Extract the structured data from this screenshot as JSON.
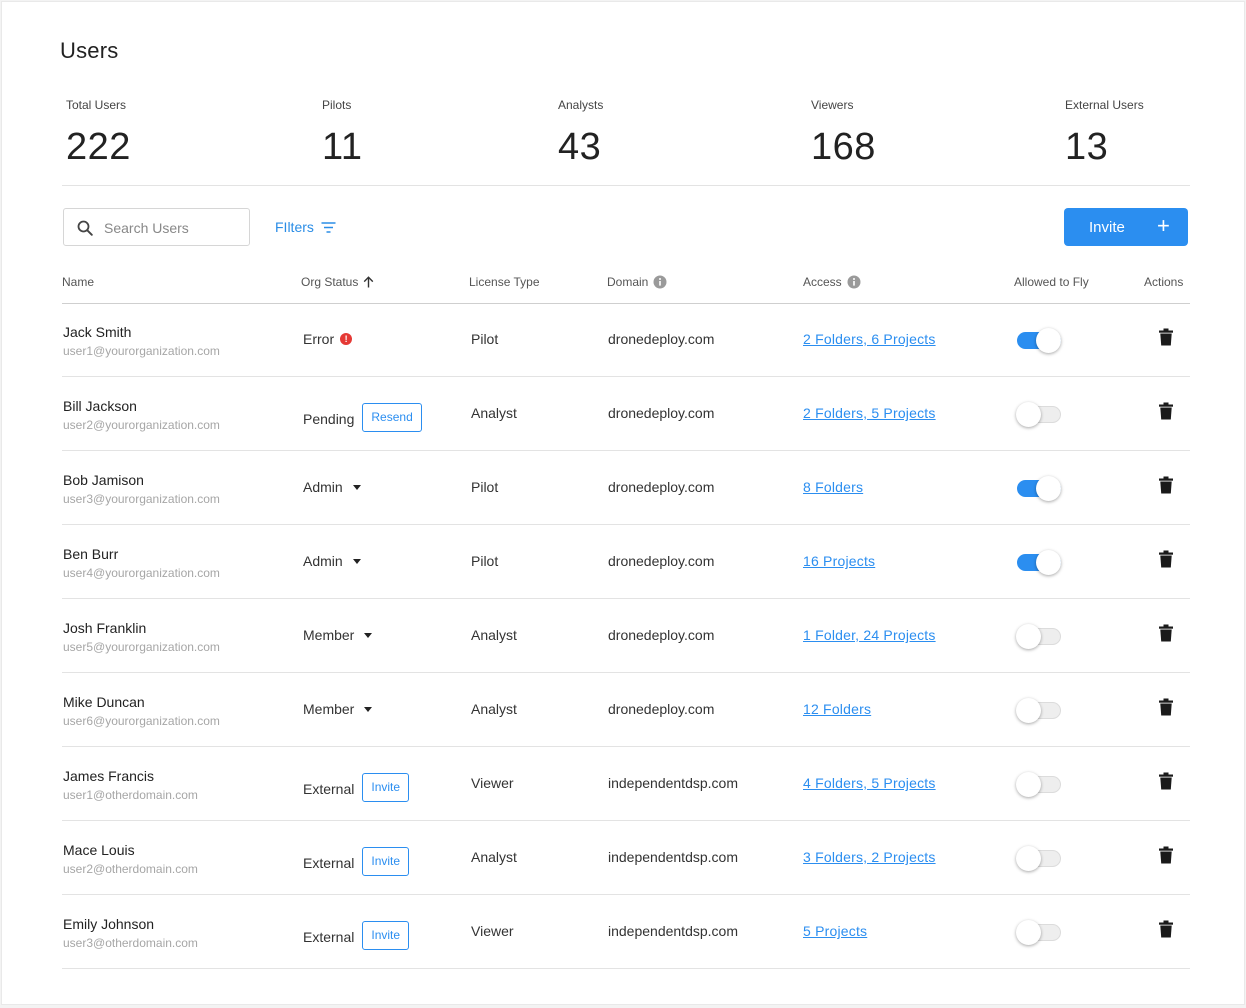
{
  "page": {
    "title": "Users"
  },
  "stats": [
    {
      "label": "Total Users",
      "value": "222"
    },
    {
      "label": "Pilots",
      "value": "11"
    },
    {
      "label": "Analysts",
      "value": "43"
    },
    {
      "label": "Viewers",
      "value": "168"
    },
    {
      "label": "External Users",
      "value": "13"
    }
  ],
  "toolbar": {
    "search_placeholder": "Search Users",
    "filters_label": "FIlters",
    "invite_label": "Invite",
    "invite_plus": "+"
  },
  "table": {
    "headers": {
      "name": "Name",
      "org_status": "Org Status",
      "license_type": "License Type",
      "domain": "Domain",
      "access": "Access",
      "allowed_to_fly": "Allowed to Fly",
      "actions": "Actions"
    },
    "rows": [
      {
        "name": "Jack Smith",
        "email": "user1@yourorganization.com",
        "status": "Error",
        "status_kind": "error",
        "chip": "",
        "license": "Pilot",
        "domain": "dronedeploy.com",
        "access": "2 Folders, 6 Projects",
        "allowed_to_fly": true
      },
      {
        "name": "Bill Jackson",
        "email": "user2@yourorganization.com",
        "status": "Pending",
        "status_kind": "chip",
        "chip": "Resend",
        "license": "Analyst",
        "domain": "dronedeploy.com",
        "access": "2 Folders, 5 Projects",
        "allowed_to_fly": false
      },
      {
        "name": "Bob Jamison",
        "email": "user3@yourorganization.com",
        "status": "Admin",
        "status_kind": "dropdown",
        "chip": "",
        "license": "Pilot",
        "domain": "dronedeploy.com",
        "access": "8 Folders",
        "allowed_to_fly": true
      },
      {
        "name": "Ben Burr",
        "email": "user4@yourorganization.com",
        "status": "Admin",
        "status_kind": "dropdown",
        "chip": "",
        "license": "Pilot",
        "domain": "dronedeploy.com",
        "access": "16 Projects",
        "allowed_to_fly": true
      },
      {
        "name": "Josh Franklin",
        "email": "user5@yourorganization.com",
        "status": "Member",
        "status_kind": "dropdown",
        "chip": "",
        "license": "Analyst",
        "domain": "dronedeploy.com",
        "access": "1 Folder, 24 Projects",
        "allowed_to_fly": false
      },
      {
        "name": "Mike Duncan",
        "email": "user6@yourorganization.com",
        "status": "Member",
        "status_kind": "dropdown",
        "chip": "",
        "license": "Analyst",
        "domain": "dronedeploy.com",
        "access": "12 Folders",
        "allowed_to_fly": false
      },
      {
        "name": "James Francis",
        "email": "user1@otherdomain.com",
        "status": "External",
        "status_kind": "chip",
        "chip": "Invite",
        "license": "Viewer",
        "domain": "independentdsp.com",
        "access": "4 Folders, 5 Projects",
        "allowed_to_fly": false
      },
      {
        "name": "Mace Louis",
        "email": "user2@otherdomain.com",
        "status": "External",
        "status_kind": "chip",
        "chip": "Invite",
        "license": "Analyst",
        "domain": "independentdsp.com",
        "access": "3 Folders, 2 Projects",
        "allowed_to_fly": false
      },
      {
        "name": "Emily Johnson",
        "email": "user3@otherdomain.com",
        "status": "External",
        "status_kind": "chip",
        "chip": "Invite",
        "license": "Viewer",
        "domain": "independentdsp.com",
        "access": "5 Projects",
        "allowed_to_fly": false
      }
    ]
  },
  "colors": {
    "accent": "#2b8ef0",
    "error": "#e53935",
    "text": "#333333",
    "muted": "#a6a6a6"
  },
  "icons": {
    "search": "search-icon",
    "filter": "filter-icon",
    "sort": "sort-up-arrow-icon",
    "info": "info-icon",
    "delete": "trash-icon"
  }
}
